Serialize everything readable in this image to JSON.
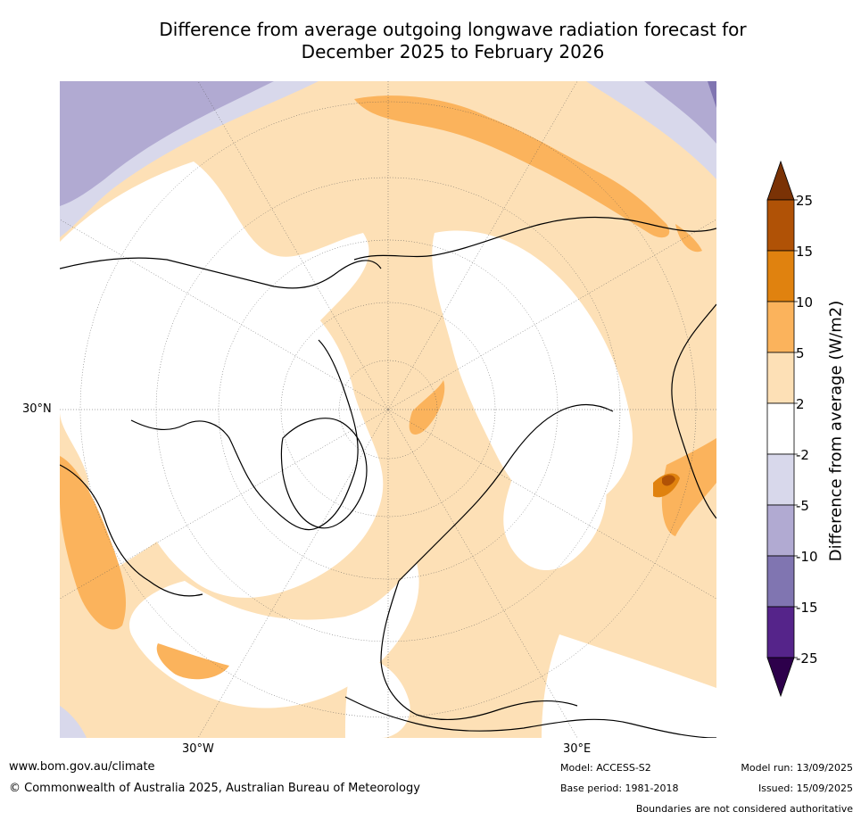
{
  "title": {
    "line1": "Difference from average outgoing longwave radiation forecast for",
    "line2": "December 2025 to February 2026"
  },
  "map": {
    "projection": "polar-stereographic",
    "labels": {
      "lat_30n": "30°N",
      "lon_30w": "30°W",
      "lon_30e": "30°E"
    }
  },
  "colorbar": {
    "label": "Difference from average (W/m2)",
    "ticks": [
      "25",
      "15",
      "10",
      "5",
      "2",
      "-2",
      "-5",
      "-10",
      "-15",
      "-25"
    ],
    "colors": {
      "overflow_high": "#7a3205",
      "15_to_25": "#b05206",
      "10_to_15": "#e0820f",
      "5_to_10": "#fbb35c",
      "2_to_5": "#fde0b6",
      "neutral": "#ffffff",
      "minus5_to_minus2": "#d8d8eb",
      "minus10_to_minus5": "#b1aad2",
      "minus15_to_minus10": "#8075b1",
      "minus25_to_minus15": "#55248a",
      "overflow_low": "#2d004b"
    }
  },
  "footer": {
    "website": "www.bom.gov.au/climate",
    "copyright": "© Commonwealth of Australia 2025, Australian Bureau of Meteorology",
    "model": "Model: ACCESS-S2",
    "base_period": "Base period: 1981-2018",
    "model_run": "Model run: 13/09/2025",
    "issued": "Issued: 15/09/2025",
    "disclaimer": "Boundaries are not considered authoritative"
  }
}
